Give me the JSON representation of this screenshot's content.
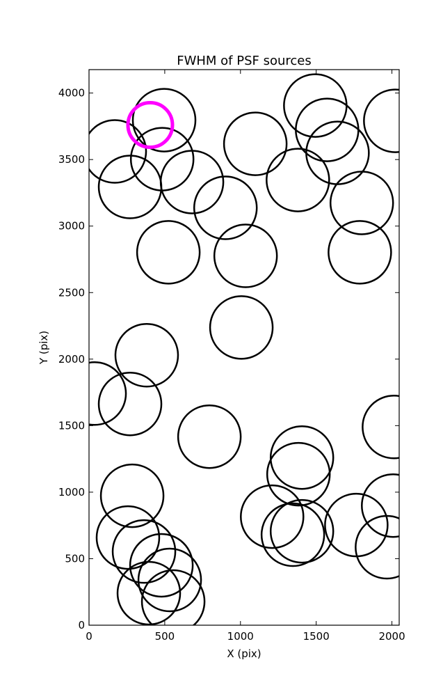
{
  "chart_data": {
    "type": "scatter",
    "title": "FWHM of PSF sources",
    "x_label": "X (pix)",
    "y_label": "Y (pix)",
    "xlim": [
      0,
      2048
    ],
    "ylim": [
      0,
      4176
    ],
    "xticks": [
      0,
      500,
      1000,
      1500,
      2000
    ],
    "yticks": [
      0,
      500,
      1000,
      1500,
      2000,
      2500,
      3000,
      3500,
      4000
    ],
    "series": [
      {
        "color": "#000000",
        "x": [
          496,
          170,
          483,
          271,
          680,
          901,
          1098,
          1494,
          1572,
          1641,
          1379,
          2022,
          1801,
          1788,
          524,
          1034,
          1006,
          381,
          37,
          271,
          795,
          2013,
          1406,
          1383,
          285,
          1209,
          2008,
          1406,
          1346,
          1765,
          1967,
          257,
          363,
          478,
          533,
          395,
          556
        ],
        "values": [
          3796,
          3561,
          3503,
          3294,
          3331,
          3137,
          3618,
          3906,
          3723,
          3550,
          3346,
          3791,
          3174,
          2803,
          2803,
          2776,
          2238,
          2029,
          1741,
          1663,
          1417,
          1490,
          1260,
          1135,
          973,
          816,
          899,
          706,
          680,
          753,
          586,
          659,
          554,
          450,
          340,
          241,
          178
        ]
      },
      {
        "color": "#ff00ff",
        "x": [
          404
        ],
        "values": [
          3760
        ]
      }
    ]
  }
}
